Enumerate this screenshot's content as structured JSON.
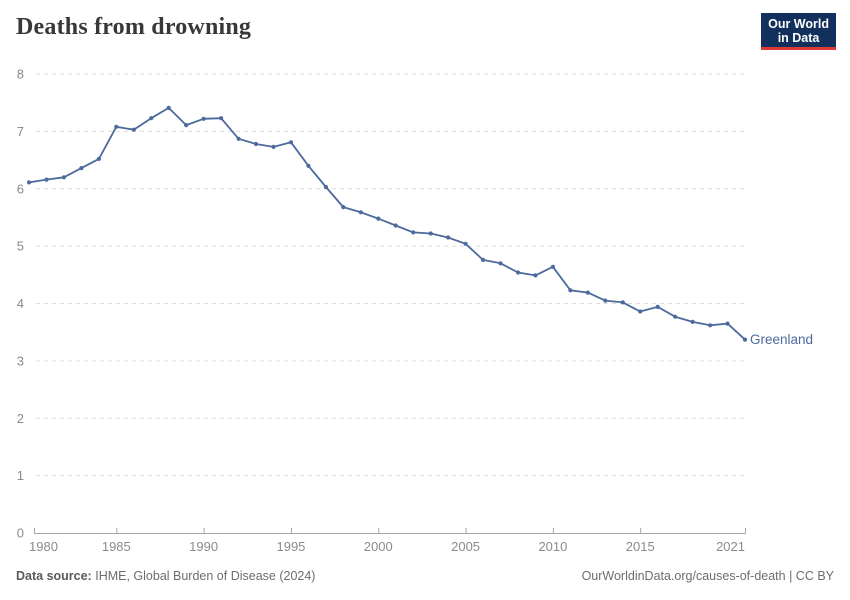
{
  "header": {
    "title": "Deaths from drowning"
  },
  "logo": {
    "line1": "Our World",
    "line2": "in Data"
  },
  "chart_data": {
    "type": "line",
    "title": "Deaths from drowning",
    "xlabel": "",
    "ylabel": "",
    "ylim": [
      0,
      8
    ],
    "yticks": [
      0,
      1,
      2,
      3,
      4,
      5,
      6,
      7,
      8
    ],
    "xticks": [
      1980,
      1985,
      1990,
      1995,
      2000,
      2005,
      2010,
      2015,
      2021
    ],
    "grid": "horizontal-dashed",
    "legend_position": "line-end",
    "x": [
      1980,
      1981,
      1982,
      1983,
      1984,
      1985,
      1986,
      1987,
      1988,
      1989,
      1990,
      1991,
      1992,
      1993,
      1994,
      1995,
      1996,
      1997,
      1998,
      1999,
      2000,
      2001,
      2002,
      2003,
      2004,
      2005,
      2006,
      2007,
      2008,
      2009,
      2010,
      2011,
      2012,
      2013,
      2014,
      2015,
      2016,
      2017,
      2018,
      2019,
      2020,
      2021
    ],
    "series": [
      {
        "name": "Greenland",
        "color": "#4C6A9C",
        "values": [
          6.11,
          6.16,
          6.2,
          6.36,
          6.52,
          7.08,
          7.03,
          7.23,
          7.41,
          7.11,
          7.22,
          7.23,
          6.87,
          6.78,
          6.73,
          6.81,
          6.4,
          6.03,
          5.68,
          5.59,
          5.48,
          5.36,
          5.24,
          5.22,
          5.15,
          5.04,
          4.76,
          4.7,
          4.54,
          4.49,
          4.64,
          4.23,
          4.19,
          4.05,
          4.02,
          3.86,
          3.94,
          3.77,
          3.68,
          3.62,
          3.65,
          3.37
        ]
      }
    ]
  },
  "footer": {
    "source_label": "Data source:",
    "source_text": "IHME, Global Burden of Disease (2024)",
    "credit": "OurWorldinData.org/causes-of-death | CC BY"
  },
  "colors": {
    "line": "#4C6A9C",
    "grid": "#dcdcdc",
    "axis": "#a5a5a5",
    "axis_text": "#8b8b8b",
    "title": "#383838",
    "logo_bg": "#12305b",
    "logo_stripe": "#dc3a32"
  }
}
